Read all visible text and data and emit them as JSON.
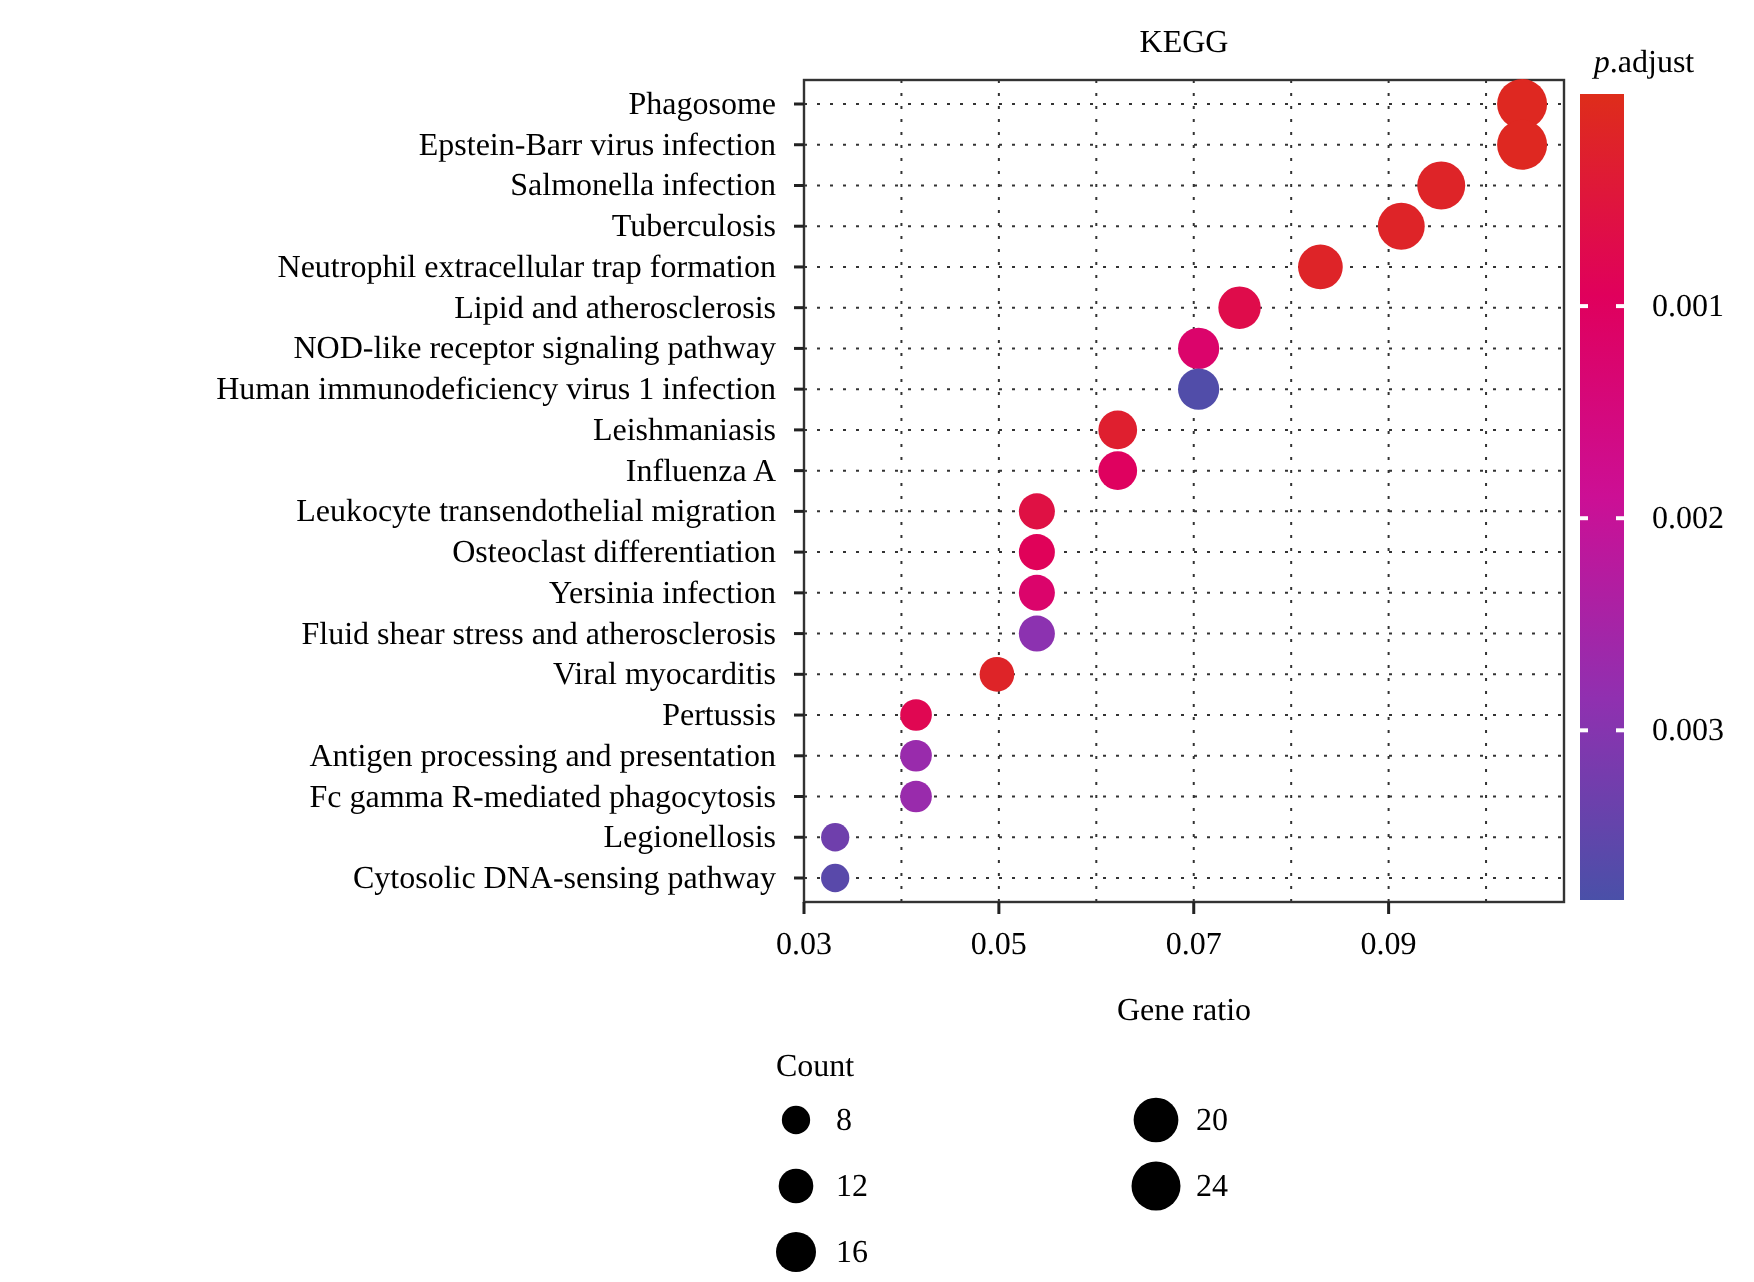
{
  "chart_data": {
    "type": "scatter",
    "orientation": "horizontal",
    "title": "KEGG",
    "xlabel": "Gene ratio",
    "clabel": "p.adjust",
    "legend_title": "Count",
    "categories": [
      "Phagosome",
      "Epstein-Barr virus infection",
      "Salmonella infection",
      "Tuberculosis",
      "Neutrophil extracellular trap formation",
      "Lipid and atherosclerosis",
      "NOD-like receptor signaling pathway",
      "Human immunodeficiency virus 1 infection",
      "Leishmaniasis",
      "Influenza A",
      "Leukocyte transendothelial migration",
      "Osteoclast differentiation",
      "Yersinia infection",
      "Fluid shear stress and atherosclerosis",
      "Viral myocarditis",
      "Pertussis",
      "Antigen processing and presentation",
      "Fc gamma R-mediated phagocytosis",
      "Legionellosis",
      "Cytosolic DNA-sensing pathway"
    ],
    "values": [
      0.1037,
      0.1037,
      0.0954,
      0.0913,
      0.083,
      0.0747,
      0.0705,
      0.0705,
      0.0622,
      0.0622,
      0.0539,
      0.0539,
      0.0539,
      0.0539,
      0.0498,
      0.0415,
      0.0415,
      0.0415,
      0.0332,
      0.0332
    ],
    "sizes": [
      25,
      25,
      23,
      22,
      20,
      18,
      17,
      17,
      15,
      15,
      13,
      13,
      13,
      13,
      12,
      10,
      10,
      10,
      8,
      8
    ],
    "cvalues": [
      0.0001,
      0.0001,
      0.0002,
      0.0002,
      0.0002,
      0.0007,
      0.0012,
      0.0037,
      0.0003,
      0.001,
      0.0006,
      0.0009,
      0.0012,
      0.0029,
      0.0002,
      0.0008,
      0.0027,
      0.0027,
      0.0033,
      0.0036
    ],
    "size_legend": [
      8,
      12,
      16,
      20,
      24
    ],
    "xlim": [
      0.03,
      0.108
    ],
    "xticks": [
      0.03,
      {
        "value": 0.04,
        "label": null
      },
      0.05,
      {
        "value": 0.06,
        "label": null
      },
      0.07,
      {
        "value": 0.08,
        "label": null
      },
      0.09,
      {
        "value": 0.1,
        "label": null
      }
    ],
    "clim": [
      0,
      0.0038
    ],
    "cticks": [
      0.001,
      0.002,
      0.003
    ],
    "grid": true,
    "marker": "circle"
  }
}
